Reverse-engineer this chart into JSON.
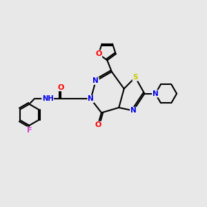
{
  "bg_color": "#e8e8e8",
  "bond_color": "#000000",
  "bond_width": 1.5,
  "atom_colors": {
    "N": "#0000ee",
    "O": "#ff0000",
    "S": "#cccc00",
    "F": "#cc44cc",
    "C": "#000000",
    "H": "#555555"
  },
  "figsize": [
    3.0,
    3.0
  ],
  "dpi": 100
}
